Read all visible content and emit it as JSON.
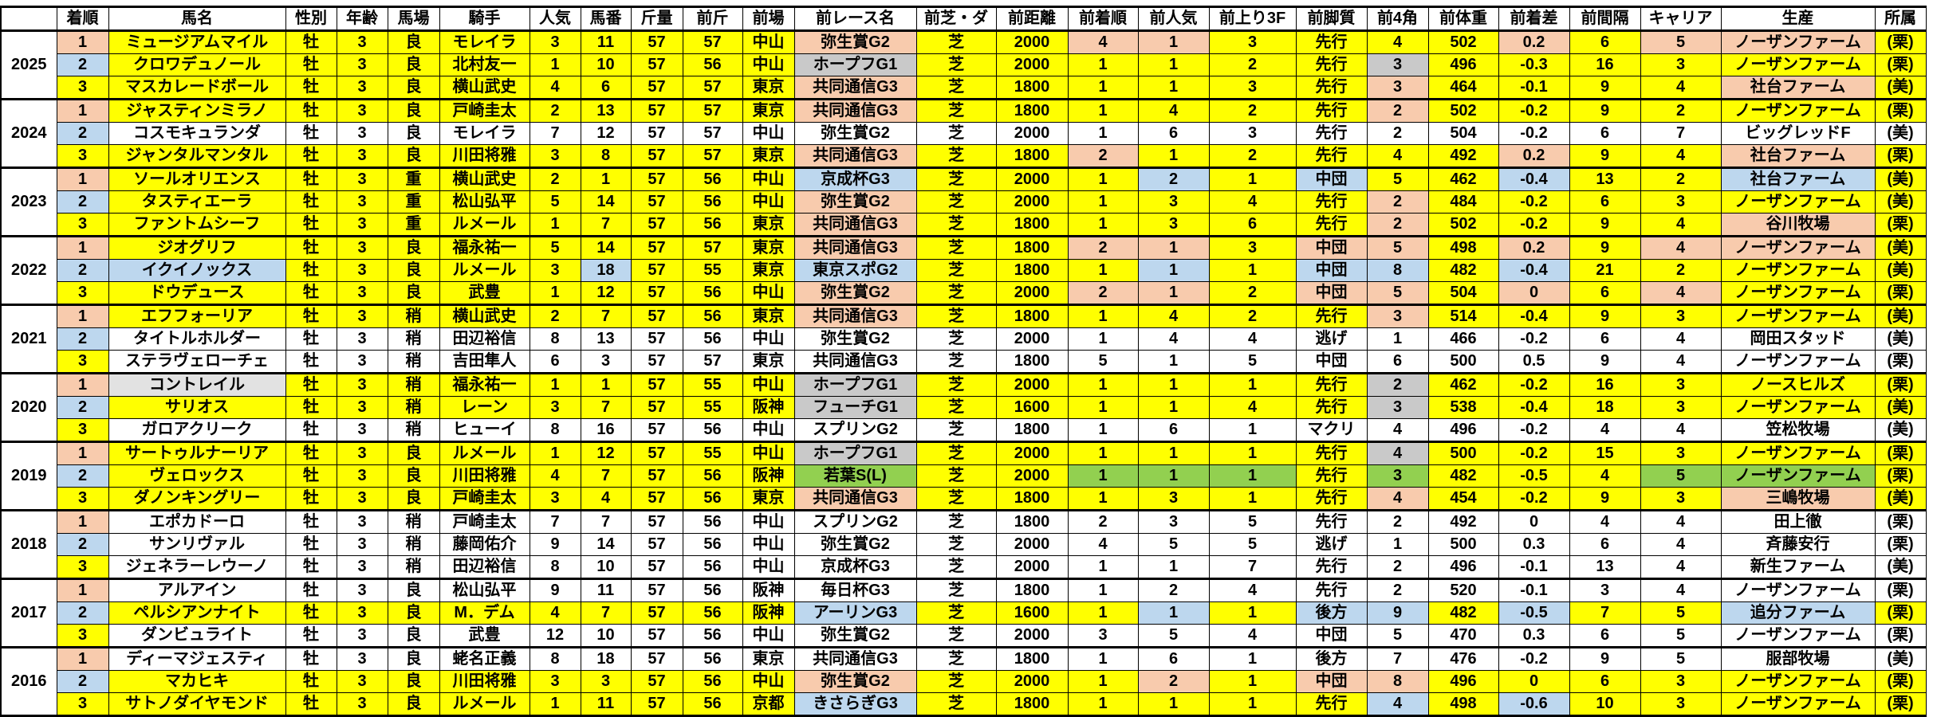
{
  "colors": {
    "Y": "#ffff00",
    "W": "#ffffff",
    "S": "#f8cbad",
    "B": "#bdd7ee",
    "G": "#c9c9c9",
    "L": "#e2e2e2",
    "N": "#92d050"
  },
  "headers": [
    "",
    "着順",
    "馬名",
    "性別",
    "年齢",
    "馬場",
    "騎手",
    "人気",
    "馬番",
    "斤量",
    "前斤",
    "前場",
    "前レース名",
    "前芝・ダ",
    "前距離",
    "前着順",
    "前人気",
    "前上り3F",
    "前脚質",
    "前4角",
    "前体重",
    "前着差",
    "前間隔",
    "キャリア",
    "生産",
    "所属"
  ],
  "groups": [
    {
      "year": "2025",
      "rows": [
        {
          "cells": [
            "1",
            "ミュージアムマイル",
            "牡",
            "3",
            "良",
            "モレイラ",
            "3",
            "11",
            "57",
            "57",
            "中山",
            "弥生賞G2",
            "芝",
            "2000",
            "4",
            "1",
            "3",
            "先行",
            "4",
            "502",
            "0.2",
            "6",
            "5",
            "ノーザンファーム",
            "(栗)"
          ],
          "colors": "SYYYYYYYYYYSYYSSYYYYSYSSY"
        },
        {
          "cells": [
            "2",
            "クロワデュノール",
            "牡",
            "3",
            "良",
            "北村友一",
            "1",
            "10",
            "57",
            "56",
            "中山",
            "ホープフG1",
            "芝",
            "2000",
            "1",
            "1",
            "2",
            "先行",
            "3",
            "496",
            "-0.3",
            "16",
            "3",
            "ノーザンファーム",
            "(栗)"
          ],
          "colors": "BYYYYYYYYYYGYYYYYYGYYYYYY"
        },
        {
          "cells": [
            "3",
            "マスカレードボール",
            "牡",
            "3",
            "良",
            "横山武史",
            "4",
            "6",
            "57",
            "57",
            "東京",
            "共同通信G3",
            "芝",
            "1800",
            "1",
            "1",
            "3",
            "先行",
            "3",
            "464",
            "-0.1",
            "9",
            "4",
            "社台ファーム",
            "(美)"
          ],
          "colors": "YYYYYYYYYYYSYYYYYYSYYYYSY"
        }
      ]
    },
    {
      "year": "2024",
      "rows": [
        {
          "cells": [
            "1",
            "ジャスティンミラノ",
            "牡",
            "3",
            "良",
            "戸崎圭太",
            "2",
            "13",
            "57",
            "57",
            "東京",
            "共同通信G3",
            "芝",
            "1800",
            "1",
            "4",
            "2",
            "先行",
            "2",
            "502",
            "-0.2",
            "9",
            "2",
            "ノーザンファーム",
            "(栗)"
          ],
          "colors": "SYYYYYYYYYYSYYYYYYSYYYYYY"
        },
        {
          "cells": [
            "2",
            "コスモキュランダ",
            "牡",
            "3",
            "良",
            "モレイラ",
            "7",
            "12",
            "57",
            "57",
            "中山",
            "弥生賞G2",
            "芝",
            "2000",
            "1",
            "6",
            "3",
            "先行",
            "2",
            "504",
            "-0.2",
            "6",
            "7",
            "ビッグレッドF",
            "(美)"
          ],
          "colors": "BWWWWWWWWWWWWWWWWWWWWWWWW"
        },
        {
          "cells": [
            "3",
            "ジャンタルマンタル",
            "牡",
            "3",
            "良",
            "川田将雅",
            "3",
            "8",
            "57",
            "57",
            "東京",
            "共同通信G3",
            "芝",
            "1800",
            "2",
            "1",
            "2",
            "先行",
            "4",
            "492",
            "0.2",
            "9",
            "4",
            "社台ファーム",
            "(栗)"
          ],
          "colors": "YYYYYYYYYYYSYYSYYYYYSYYSY"
        }
      ]
    },
    {
      "year": "2023",
      "rows": [
        {
          "cells": [
            "1",
            "ソールオリエンス",
            "牡",
            "3",
            "重",
            "横山武史",
            "2",
            "1",
            "57",
            "56",
            "中山",
            "京成杯G3",
            "芝",
            "2000",
            "1",
            "2",
            "1",
            "中団",
            "5",
            "462",
            "-0.4",
            "13",
            "2",
            "社台ファーム",
            "(美)"
          ],
          "colors": "SYYYYYYYYYYBYYYBYBYYBYYBY"
        },
        {
          "cells": [
            "2",
            "タスティエーラ",
            "牡",
            "3",
            "重",
            "松山弘平",
            "5",
            "14",
            "57",
            "56",
            "中山",
            "弥生賞G2",
            "芝",
            "2000",
            "1",
            "3",
            "4",
            "先行",
            "2",
            "484",
            "-0.2",
            "6",
            "3",
            "ノーザンファーム",
            "(美)"
          ],
          "colors": "BYYYYYYYYYYSYYYYYYSYYYYYY"
        },
        {
          "cells": [
            "3",
            "ファントムシーフ",
            "牡",
            "3",
            "重",
            "ルメール",
            "1",
            "7",
            "57",
            "56",
            "東京",
            "共同通信G3",
            "芝",
            "1800",
            "1",
            "3",
            "6",
            "先行",
            "2",
            "502",
            "-0.2",
            "9",
            "4",
            "谷川牧場",
            "(栗)"
          ],
          "colors": "YYYYYYYYYYYSYYYYYYSYYYYSY"
        }
      ]
    },
    {
      "year": "2022",
      "rows": [
        {
          "cells": [
            "1",
            "ジオグリフ",
            "牡",
            "3",
            "良",
            "福永祐一",
            "5",
            "14",
            "57",
            "57",
            "東京",
            "共同通信G3",
            "芝",
            "1800",
            "2",
            "1",
            "3",
            "中団",
            "5",
            "498",
            "0.2",
            "9",
            "4",
            "ノーザンファーム",
            "(美)"
          ],
          "colors": "SYYYYYYYYYYSYYSSYSSYSYSSY"
        },
        {
          "cells": [
            "2",
            "イクイノックス",
            "牡",
            "3",
            "良",
            "ルメール",
            "3",
            "18",
            "57",
            "55",
            "東京",
            "東京スポG2",
            "芝",
            "1800",
            "1",
            "1",
            "1",
            "中団",
            "8",
            "482",
            "-0.4",
            "21",
            "2",
            "ノーザンファーム",
            "(美)"
          ],
          "colors": "BBYYYYYBYYYBYYYBYBBYBYYYY"
        },
        {
          "cells": [
            "3",
            "ドウデュース",
            "牡",
            "3",
            "良",
            "武豊",
            "1",
            "12",
            "57",
            "56",
            "中山",
            "弥生賞G2",
            "芝",
            "2000",
            "2",
            "1",
            "2",
            "中団",
            "5",
            "504",
            "0",
            "6",
            "4",
            "ノーザンファーム",
            "(栗)"
          ],
          "colors": "YYYYYYYYYYYSYYSSYSSYSYSYY"
        }
      ]
    },
    {
      "year": "2021",
      "rows": [
        {
          "cells": [
            "1",
            "エフフォーリア",
            "牡",
            "3",
            "稍",
            "横山武史",
            "2",
            "7",
            "57",
            "56",
            "東京",
            "共同通信G3",
            "芝",
            "1800",
            "1",
            "4",
            "2",
            "先行",
            "3",
            "514",
            "-0.4",
            "9",
            "3",
            "ノーザンファーム",
            "(美)"
          ],
          "colors": "SYYYYYYYYYYSYYYYYYSYYYYYY"
        },
        {
          "cells": [
            "2",
            "タイトルホルダー",
            "牡",
            "3",
            "稍",
            "田辺裕信",
            "8",
            "13",
            "57",
            "56",
            "中山",
            "弥生賞G2",
            "芝",
            "2000",
            "1",
            "4",
            "4",
            "逃げ",
            "1",
            "466",
            "-0.2",
            "6",
            "4",
            "岡田スタッド",
            "(美)"
          ],
          "colors": "BWWWWWWWWWWWWWWWWWWWWWWWW"
        },
        {
          "cells": [
            "3",
            "ステラヴェローチェ",
            "牡",
            "3",
            "稍",
            "吉田隼人",
            "6",
            "3",
            "57",
            "57",
            "東京",
            "共同通信G3",
            "芝",
            "1800",
            "5",
            "1",
            "5",
            "中団",
            "6",
            "500",
            "0.5",
            "9",
            "4",
            "ノーザンファーム",
            "(栗)"
          ],
          "colors": "YWWWWWWWWWWWWWWWWWWWWWWWW"
        }
      ]
    },
    {
      "year": "2020",
      "rows": [
        {
          "cells": [
            "1",
            "コントレイル",
            "牡",
            "3",
            "稍",
            "福永祐一",
            "1",
            "1",
            "57",
            "55",
            "中山",
            "ホープフG1",
            "芝",
            "2000",
            "1",
            "1",
            "1",
            "先行",
            "2",
            "462",
            "-0.2",
            "16",
            "3",
            "ノースヒルズ",
            "(栗)"
          ],
          "colors": "SLYYYYYYYYYGYYYYYYGYYYYYY"
        },
        {
          "cells": [
            "2",
            "サリオス",
            "牡",
            "3",
            "稍",
            "レーン",
            "3",
            "7",
            "57",
            "55",
            "阪神",
            "フューチG1",
            "芝",
            "1600",
            "1",
            "1",
            "4",
            "先行",
            "3",
            "538",
            "-0.4",
            "18",
            "3",
            "ノーザンファーム",
            "(美)"
          ],
          "colors": "BYYYYYYYYYYGYYYYYYGYYYYYY"
        },
        {
          "cells": [
            "3",
            "ガロアクリーク",
            "牡",
            "3",
            "稍",
            "ヒューイ",
            "8",
            "16",
            "57",
            "56",
            "中山",
            "スプリンG2",
            "芝",
            "1800",
            "1",
            "6",
            "1",
            "マクリ",
            "4",
            "496",
            "-0.2",
            "4",
            "4",
            "笠松牧場",
            "(美)"
          ],
          "colors": "YWWWWWWWWWWWWWWWWWWWWWWWW"
        }
      ]
    },
    {
      "year": "2019",
      "rows": [
        {
          "cells": [
            "1",
            "サートゥルナーリア",
            "牡",
            "3",
            "良",
            "ルメール",
            "1",
            "12",
            "57",
            "55",
            "中山",
            "ホープフG1",
            "芝",
            "2000",
            "1",
            "1",
            "1",
            "先行",
            "4",
            "500",
            "-0.2",
            "15",
            "3",
            "ノーザンファーム",
            "(栗)"
          ],
          "colors": "SYYYYYYYYYYGYYYYYYGYYYYYY"
        },
        {
          "cells": [
            "2",
            "ヴェロックス",
            "牡",
            "3",
            "良",
            "川田将雅",
            "4",
            "7",
            "57",
            "56",
            "阪神",
            "若葉S(L)",
            "芝",
            "2000",
            "1",
            "1",
            "1",
            "先行",
            "3",
            "482",
            "-0.5",
            "4",
            "5",
            "ノーザンファーム",
            "(栗)"
          ],
          "colors": "BYYYYYYYYYYNYYNNNYNYYYNNY"
        },
        {
          "cells": [
            "3",
            "ダノンキングリー",
            "牡",
            "3",
            "良",
            "戸崎圭太",
            "3",
            "4",
            "57",
            "56",
            "東京",
            "共同通信G3",
            "芝",
            "1800",
            "1",
            "3",
            "1",
            "先行",
            "4",
            "454",
            "-0.2",
            "9",
            "3",
            "三嶋牧場",
            "(美)"
          ],
          "colors": "YYYYYYYYYYYSYYYYYYSYYYYSY"
        }
      ]
    },
    {
      "year": "2018",
      "rows": [
        {
          "cells": [
            "1",
            "エポカドーロ",
            "牡",
            "3",
            "稍",
            "戸崎圭太",
            "7",
            "7",
            "57",
            "56",
            "中山",
            "スプリンG2",
            "芝",
            "1800",
            "2",
            "3",
            "5",
            "先行",
            "2",
            "492",
            "0",
            "4",
            "4",
            "田上徹",
            "(栗)"
          ],
          "colors": "SWWWWWWWWWWWWWWWWWWWWWWWW"
        },
        {
          "cells": [
            "2",
            "サンリヴァル",
            "牡",
            "3",
            "稍",
            "藤岡佑介",
            "9",
            "14",
            "57",
            "56",
            "中山",
            "弥生賞G2",
            "芝",
            "2000",
            "4",
            "5",
            "5",
            "逃げ",
            "1",
            "500",
            "0.3",
            "6",
            "4",
            "斉藤安行",
            "(栗)"
          ],
          "colors": "BWWWWWWWWWWWWWWWWWWWWWWWW"
        },
        {
          "cells": [
            "3",
            "ジェネラーレウーノ",
            "牡",
            "3",
            "稍",
            "田辺裕信",
            "8",
            "10",
            "57",
            "56",
            "中山",
            "京成杯G3",
            "芝",
            "2000",
            "1",
            "1",
            "7",
            "先行",
            "2",
            "496",
            "-0.1",
            "13",
            "4",
            "新生ファーム",
            "(美)"
          ],
          "colors": "YWWWWWWWWWWWWWWWWWWWWWWWW"
        }
      ]
    },
    {
      "year": "2017",
      "rows": [
        {
          "cells": [
            "1",
            "アルアイン",
            "牡",
            "3",
            "良",
            "松山弘平",
            "9",
            "11",
            "57",
            "56",
            "阪神",
            "毎日杯G3",
            "芝",
            "1800",
            "1",
            "2",
            "4",
            "先行",
            "2",
            "520",
            "-0.1",
            "3",
            "4",
            "ノーザンファーム",
            "(栗)"
          ],
          "colors": "SWWWWWWWWWWWWWWWWWWWWWWWW"
        },
        {
          "cells": [
            "2",
            "ペルシアンナイト",
            "牡",
            "3",
            "良",
            "M．デム",
            "4",
            "7",
            "57",
            "56",
            "阪神",
            "アーリンG3",
            "芝",
            "1600",
            "1",
            "1",
            "1",
            "後方",
            "9",
            "482",
            "-0.5",
            "7",
            "5",
            "追分ファーム",
            "(栗)"
          ],
          "colors": "BYYYYYYYYYYBYYYBYBBYBYYBY"
        },
        {
          "cells": [
            "3",
            "ダンビュライト",
            "牡",
            "3",
            "良",
            "武豊",
            "12",
            "10",
            "57",
            "56",
            "中山",
            "弥生賞G2",
            "芝",
            "2000",
            "3",
            "5",
            "4",
            "中団",
            "5",
            "470",
            "0.3",
            "6",
            "5",
            "ノーザンファーム",
            "(栗)"
          ],
          "colors": "YWWWWWWWWWWWWWWWWWWWWWWWW"
        }
      ]
    },
    {
      "year": "2016",
      "rows": [
        {
          "cells": [
            "1",
            "ディーマジェスティ",
            "牡",
            "3",
            "良",
            "蛯名正義",
            "8",
            "18",
            "57",
            "56",
            "東京",
            "共同通信G3",
            "芝",
            "1800",
            "1",
            "6",
            "1",
            "後方",
            "7",
            "476",
            "-0.2",
            "9",
            "5",
            "服部牧場",
            "(美)"
          ],
          "colors": "SWWWWWWWWWWWWWWWWWWWWWWWW"
        },
        {
          "cells": [
            "2",
            "マカヒキ",
            "牡",
            "3",
            "良",
            "川田将雅",
            "3",
            "3",
            "57",
            "56",
            "中山",
            "弥生賞G2",
            "芝",
            "2000",
            "1",
            "2",
            "1",
            "中団",
            "8",
            "496",
            "0",
            "6",
            "3",
            "ノーザンファーム",
            "(栗)"
          ],
          "colors": "BYYYYYYYYYYSYYYSYSSYYYYYY"
        },
        {
          "cells": [
            "3",
            "サトノダイヤモンド",
            "牡",
            "3",
            "良",
            "ルメール",
            "1",
            "11",
            "57",
            "56",
            "京都",
            "きさらぎG3",
            "芝",
            "1800",
            "1",
            "1",
            "1",
            "先行",
            "4",
            "498",
            "-0.6",
            "10",
            "3",
            "ノーザンファーム",
            "(栗)"
          ],
          "colors": "YYYYYYYYYYYBYYYYYYBYBYYYY"
        }
      ]
    }
  ]
}
